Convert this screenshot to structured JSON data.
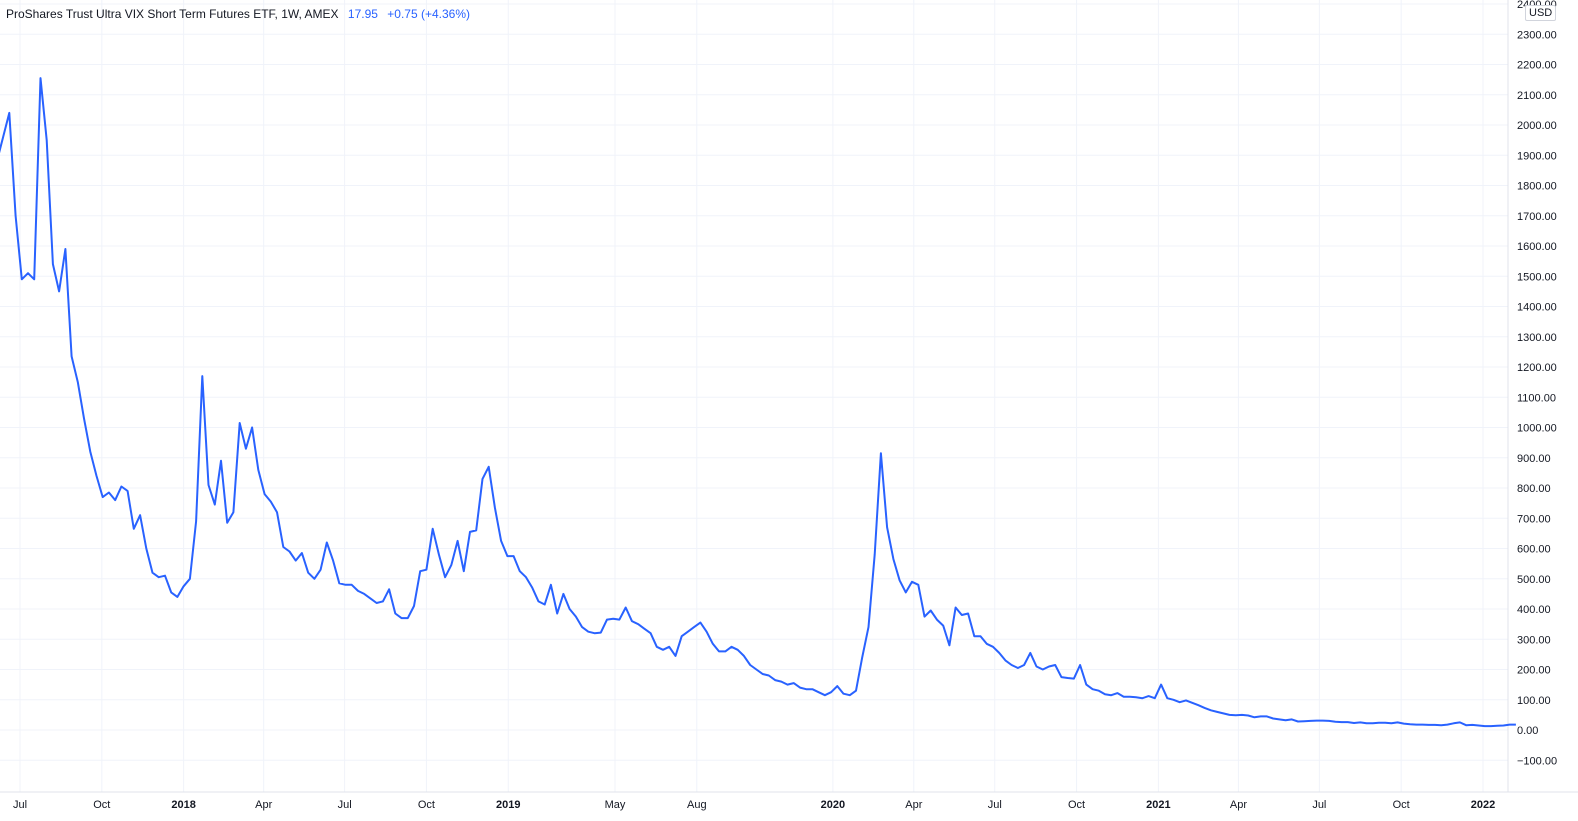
{
  "legend": {
    "symbol": "ProShares Trust Ultra VIX Short Term Futures ETF, 1W, AMEX",
    "last": "17.95",
    "change": "+0.75 (+4.36%)"
  },
  "currency": "USD",
  "colors": {
    "line": "#2962ff",
    "grid": "#f0f3fa",
    "axis": "#e0e3eb"
  },
  "chart_data": {
    "type": "line",
    "title": "ProShares Trust Ultra VIX Short Term Futures ETF, 1W, AMEX",
    "ylim": [
      -200,
      2400
    ],
    "yticks": [
      -100,
      0,
      100,
      200,
      300,
      400,
      500,
      600,
      700,
      800,
      900,
      1000,
      1100,
      1200,
      1300,
      1400,
      1500,
      1600,
      1700,
      1800,
      1900,
      2000,
      2100,
      2200,
      2300,
      2400
    ],
    "ytick_labels": [
      "−100.00",
      "0.00",
      "100.00",
      "200.00",
      "300.00",
      "400.00",
      "500.00",
      "600.00",
      "700.00",
      "800.00",
      "900.00",
      "1000.00",
      "1100.00",
      "1200.00",
      "1300.00",
      "1400.00",
      "1500.00",
      "1600.00",
      "1700.00",
      "1800.00",
      "1900.00",
      "2000.00",
      "2100.00",
      "2200.00",
      "2300.00",
      "2400.00"
    ],
    "xlim": [
      "2017-05-29",
      "2022-02-28"
    ],
    "xticks": [
      {
        "date": "2017-07-01",
        "label": "Jul",
        "bold": false
      },
      {
        "date": "2017-10-01",
        "label": "Oct",
        "bold": false
      },
      {
        "date": "2018-01-01",
        "label": "2018",
        "bold": true
      },
      {
        "date": "2018-04-01",
        "label": "Apr",
        "bold": false
      },
      {
        "date": "2018-07-01",
        "label": "Jul",
        "bold": false
      },
      {
        "date": "2018-10-01",
        "label": "Oct",
        "bold": false
      },
      {
        "date": "2019-01-01",
        "label": "2019",
        "bold": true
      },
      {
        "date": "2019-05-01",
        "label": "May",
        "bold": false
      },
      {
        "date": "2019-08-01",
        "label": "Aug",
        "bold": false
      },
      {
        "date": "2020-01-01",
        "label": "2020",
        "bold": true
      },
      {
        "date": "2020-04-01",
        "label": "Apr",
        "bold": false
      },
      {
        "date": "2020-07-01",
        "label": "Jul",
        "bold": false
      },
      {
        "date": "2020-10-01",
        "label": "Oct",
        "bold": false
      },
      {
        "date": "2021-01-01",
        "label": "2021",
        "bold": true
      },
      {
        "date": "2021-04-01",
        "label": "Apr",
        "bold": false
      },
      {
        "date": "2021-07-01",
        "label": "Jul",
        "bold": false
      },
      {
        "date": "2021-10-01",
        "label": "Oct",
        "bold": false
      },
      {
        "date": "2022-01-01",
        "label": "2022",
        "bold": true
      }
    ],
    "grid": true,
    "series": [
      {
        "color": "#2962ff",
        "points": [
          [
            "2017-05-29",
            2070
          ],
          [
            "2017-06-05",
            1880
          ],
          [
            "2017-06-12",
            1960
          ],
          [
            "2017-06-19",
            2040
          ],
          [
            "2017-06-26",
            1700
          ],
          [
            "2017-07-03",
            1490
          ],
          [
            "2017-07-10",
            1510
          ],
          [
            "2017-07-17",
            1490
          ],
          [
            "2017-07-24",
            2155
          ],
          [
            "2017-07-31",
            1950
          ],
          [
            "2017-08-07",
            1540
          ],
          [
            "2017-08-14",
            1450
          ],
          [
            "2017-08-21",
            1590
          ],
          [
            "2017-08-28",
            1235
          ],
          [
            "2017-09-04",
            1150
          ],
          [
            "2017-09-11",
            1030
          ],
          [
            "2017-09-18",
            920
          ],
          [
            "2017-09-25",
            840
          ],
          [
            "2017-10-02",
            770
          ],
          [
            "2017-10-09",
            785
          ],
          [
            "2017-10-16",
            760
          ],
          [
            "2017-10-23",
            805
          ],
          [
            "2017-10-30",
            790
          ],
          [
            "2017-11-06",
            665
          ],
          [
            "2017-11-13",
            710
          ],
          [
            "2017-11-20",
            600
          ],
          [
            "2017-11-27",
            520
          ],
          [
            "2017-12-04",
            505
          ],
          [
            "2017-12-11",
            510
          ],
          [
            "2017-12-18",
            455
          ],
          [
            "2017-12-25",
            440
          ],
          [
            "2018-01-01",
            475
          ],
          [
            "2018-01-08",
            500
          ],
          [
            "2018-01-15",
            690
          ],
          [
            "2018-01-22",
            1170
          ],
          [
            "2018-01-29",
            810
          ],
          [
            "2018-02-05",
            745
          ],
          [
            "2018-02-12",
            890
          ],
          [
            "2018-02-19",
            685
          ],
          [
            "2018-02-26",
            720
          ],
          [
            "2018-03-05",
            1015
          ],
          [
            "2018-03-12",
            930
          ],
          [
            "2018-03-19",
            1000
          ],
          [
            "2018-03-26",
            860
          ],
          [
            "2018-04-02",
            780
          ],
          [
            "2018-04-09",
            755
          ],
          [
            "2018-04-16",
            720
          ],
          [
            "2018-04-23",
            605
          ],
          [
            "2018-04-30",
            590
          ],
          [
            "2018-05-07",
            560
          ],
          [
            "2018-05-14",
            585
          ],
          [
            "2018-05-21",
            520
          ],
          [
            "2018-05-28",
            500
          ],
          [
            "2018-06-04",
            530
          ],
          [
            "2018-06-11",
            620
          ],
          [
            "2018-06-18",
            560
          ],
          [
            "2018-06-25",
            485
          ],
          [
            "2018-07-02",
            480
          ],
          [
            "2018-07-09",
            480
          ],
          [
            "2018-07-16",
            460
          ],
          [
            "2018-07-23",
            450
          ],
          [
            "2018-07-30",
            435
          ],
          [
            "2018-08-06",
            420
          ],
          [
            "2018-08-13",
            425
          ],
          [
            "2018-08-20",
            465
          ],
          [
            "2018-08-27",
            385
          ],
          [
            "2018-09-03",
            370
          ],
          [
            "2018-09-10",
            370
          ],
          [
            "2018-09-17",
            410
          ],
          [
            "2018-09-24",
            525
          ],
          [
            "2018-10-01",
            530
          ],
          [
            "2018-10-08",
            665
          ],
          [
            "2018-10-15",
            580
          ],
          [
            "2018-10-22",
            505
          ],
          [
            "2018-10-29",
            545
          ],
          [
            "2018-11-05",
            625
          ],
          [
            "2018-11-12",
            525
          ],
          [
            "2018-11-19",
            655
          ],
          [
            "2018-11-26",
            660
          ],
          [
            "2018-12-03",
            830
          ],
          [
            "2018-12-10",
            870
          ],
          [
            "2018-12-17",
            735
          ],
          [
            "2018-12-24",
            625
          ],
          [
            "2018-12-31",
            575
          ],
          [
            "2019-01-07",
            575
          ],
          [
            "2019-01-14",
            525
          ],
          [
            "2019-01-21",
            505
          ],
          [
            "2019-01-28",
            470
          ],
          [
            "2019-02-04",
            425
          ],
          [
            "2019-02-11",
            415
          ],
          [
            "2019-02-18",
            480
          ],
          [
            "2019-02-25",
            385
          ],
          [
            "2019-03-04",
            450
          ],
          [
            "2019-03-11",
            400
          ],
          [
            "2019-03-18",
            375
          ],
          [
            "2019-03-25",
            340
          ],
          [
            "2019-04-01",
            325
          ],
          [
            "2019-04-08",
            320
          ],
          [
            "2019-04-15",
            322
          ],
          [
            "2019-04-22",
            365
          ],
          [
            "2019-04-29",
            368
          ],
          [
            "2019-05-06",
            365
          ],
          [
            "2019-05-13",
            405
          ],
          [
            "2019-05-20",
            360
          ],
          [
            "2019-05-27",
            350
          ],
          [
            "2019-06-03",
            335
          ],
          [
            "2019-06-10",
            320
          ],
          [
            "2019-06-17",
            275
          ],
          [
            "2019-06-24",
            265
          ],
          [
            "2019-07-01",
            275
          ],
          [
            "2019-07-08",
            245
          ],
          [
            "2019-07-15",
            310
          ],
          [
            "2019-07-22",
            325
          ],
          [
            "2019-07-29",
            340
          ],
          [
            "2019-08-05",
            355
          ],
          [
            "2019-08-12",
            325
          ],
          [
            "2019-08-19",
            285
          ],
          [
            "2019-08-26",
            260
          ],
          [
            "2019-09-02",
            260
          ],
          [
            "2019-09-09",
            275
          ],
          [
            "2019-09-16",
            265
          ],
          [
            "2019-09-23",
            245
          ],
          [
            "2019-09-30",
            215
          ],
          [
            "2019-10-07",
            200
          ],
          [
            "2019-10-14",
            185
          ],
          [
            "2019-10-21",
            180
          ],
          [
            "2019-10-28",
            165
          ],
          [
            "2019-11-04",
            160
          ],
          [
            "2019-11-11",
            150
          ],
          [
            "2019-11-18",
            155
          ],
          [
            "2019-11-25",
            140
          ],
          [
            "2019-12-02",
            135
          ],
          [
            "2019-12-09",
            135
          ],
          [
            "2019-12-16",
            125
          ],
          [
            "2019-12-23",
            115
          ],
          [
            "2019-12-30",
            125
          ],
          [
            "2020-01-06",
            145
          ],
          [
            "2020-01-13",
            120
          ],
          [
            "2020-01-20",
            115
          ],
          [
            "2020-01-27",
            130
          ],
          [
            "2020-02-03",
            240
          ],
          [
            "2020-02-10",
            340
          ],
          [
            "2020-02-17",
            580
          ],
          [
            "2020-02-24",
            915
          ],
          [
            "2020-03-02",
            670
          ],
          [
            "2020-03-09",
            565
          ],
          [
            "2020-03-16",
            495
          ],
          [
            "2020-03-23",
            455
          ],
          [
            "2020-03-30",
            490
          ],
          [
            "2020-04-06",
            480
          ],
          [
            "2020-04-13",
            375
          ],
          [
            "2020-04-20",
            395
          ],
          [
            "2020-04-27",
            365
          ],
          [
            "2020-05-04",
            345
          ],
          [
            "2020-05-11",
            280
          ],
          [
            "2020-05-18",
            405
          ],
          [
            "2020-05-25",
            380
          ],
          [
            "2020-06-01",
            385
          ],
          [
            "2020-06-08",
            310
          ],
          [
            "2020-06-15",
            310
          ],
          [
            "2020-06-22",
            285
          ],
          [
            "2020-06-29",
            275
          ],
          [
            "2020-07-06",
            255
          ],
          [
            "2020-07-13",
            230
          ],
          [
            "2020-07-20",
            215
          ],
          [
            "2020-07-27",
            205
          ],
          [
            "2020-08-03",
            215
          ],
          [
            "2020-08-10",
            255
          ],
          [
            "2020-08-17",
            210
          ],
          [
            "2020-08-24",
            200
          ],
          [
            "2020-08-31",
            210
          ],
          [
            "2020-09-07",
            215
          ],
          [
            "2020-09-14",
            175
          ],
          [
            "2020-09-21",
            172
          ],
          [
            "2020-09-28",
            170
          ],
          [
            "2020-10-05",
            215
          ],
          [
            "2020-10-12",
            150
          ],
          [
            "2020-10-19",
            135
          ],
          [
            "2020-10-26",
            130
          ],
          [
            "2020-11-02",
            118
          ],
          [
            "2020-11-09",
            115
          ],
          [
            "2020-11-16",
            122
          ],
          [
            "2020-11-23",
            110
          ],
          [
            "2020-11-30",
            110
          ],
          [
            "2020-12-07",
            108
          ],
          [
            "2020-12-14",
            105
          ],
          [
            "2020-12-21",
            112
          ],
          [
            "2020-12-28",
            105
          ],
          [
            "2021-01-04",
            150
          ],
          [
            "2021-01-11",
            105
          ],
          [
            "2021-01-18",
            100
          ],
          [
            "2021-01-25",
            92
          ],
          [
            "2021-02-01",
            98
          ],
          [
            "2021-02-08",
            90
          ],
          [
            "2021-02-15",
            82
          ],
          [
            "2021-02-22",
            73
          ],
          [
            "2021-03-01",
            65
          ],
          [
            "2021-03-08",
            60
          ],
          [
            "2021-03-15",
            55
          ],
          [
            "2021-03-22",
            50
          ],
          [
            "2021-03-29",
            49
          ],
          [
            "2021-04-05",
            50
          ],
          [
            "2021-04-12",
            48
          ],
          [
            "2021-04-19",
            42
          ],
          [
            "2021-04-26",
            45
          ],
          [
            "2021-05-03",
            45
          ],
          [
            "2021-05-10",
            38
          ],
          [
            "2021-05-17",
            35
          ],
          [
            "2021-05-24",
            32
          ],
          [
            "2021-05-31",
            35
          ],
          [
            "2021-06-07",
            28
          ],
          [
            "2021-06-14",
            29
          ],
          [
            "2021-06-21",
            30
          ],
          [
            "2021-06-28",
            31
          ],
          [
            "2021-07-05",
            31
          ],
          [
            "2021-07-12",
            30
          ],
          [
            "2021-07-19",
            27
          ],
          [
            "2021-07-26",
            26
          ],
          [
            "2021-08-02",
            26
          ],
          [
            "2021-08-09",
            23
          ],
          [
            "2021-08-16",
            25
          ],
          [
            "2021-08-23",
            22
          ],
          [
            "2021-08-30",
            22
          ],
          [
            "2021-09-06",
            24
          ],
          [
            "2021-09-13",
            24
          ],
          [
            "2021-09-20",
            22
          ],
          [
            "2021-09-27",
            25
          ],
          [
            "2021-10-04",
            21
          ],
          [
            "2021-10-11",
            19
          ],
          [
            "2021-10-18",
            18
          ],
          [
            "2021-10-25",
            18
          ],
          [
            "2021-11-01",
            17
          ],
          [
            "2021-11-08",
            17
          ],
          [
            "2021-11-15",
            16
          ],
          [
            "2021-11-22",
            18
          ],
          [
            "2021-11-29",
            22
          ],
          [
            "2021-12-06",
            25
          ],
          [
            "2021-12-13",
            16
          ],
          [
            "2021-12-20",
            17
          ],
          [
            "2021-12-27",
            15
          ],
          [
            "2022-01-03",
            13
          ],
          [
            "2022-01-10",
            13
          ],
          [
            "2022-01-17",
            14
          ],
          [
            "2022-01-24",
            15
          ],
          [
            "2022-01-31",
            18
          ],
          [
            "2022-02-07",
            17.95
          ]
        ]
      }
    ]
  }
}
